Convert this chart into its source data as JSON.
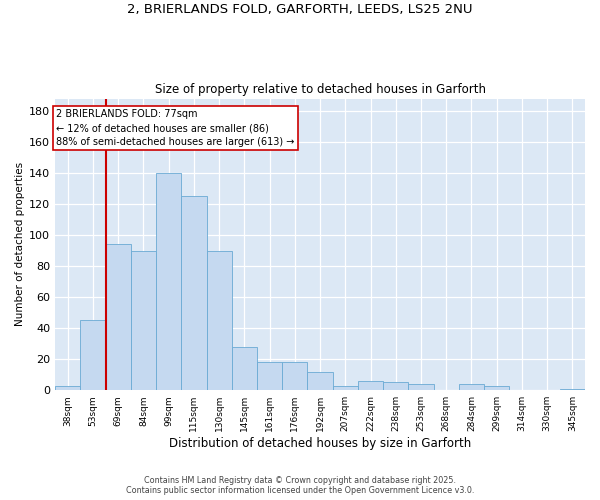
{
  "title1": "2, BRIERLANDS FOLD, GARFORTH, LEEDS, LS25 2NU",
  "title2": "Size of property relative to detached houses in Garforth",
  "xlabel": "Distribution of detached houses by size in Garforth",
  "ylabel": "Number of detached properties",
  "categories": [
    "38sqm",
    "53sqm",
    "69sqm",
    "84sqm",
    "99sqm",
    "115sqm",
    "130sqm",
    "145sqm",
    "161sqm",
    "176sqm",
    "192sqm",
    "207sqm",
    "222sqm",
    "238sqm",
    "253sqm",
    "268sqm",
    "284sqm",
    "299sqm",
    "314sqm",
    "330sqm",
    "345sqm"
  ],
  "values": [
    3,
    45,
    94,
    90,
    140,
    125,
    90,
    28,
    18,
    18,
    12,
    3,
    6,
    5,
    4,
    0,
    4,
    3,
    0,
    0,
    1
  ],
  "bar_color": "#c5d9f0",
  "bar_edge_color": "#6aaad4",
  "bg_color": "#dce8f5",
  "grid_color": "#ffffff",
  "vline_color": "#cc0000",
  "annotation_text": "2 BRIERLANDS FOLD: 77sqm\n← 12% of detached houses are smaller (86)\n88% of semi-detached houses are larger (613) →",
  "annotation_edge_color": "#cc0000",
  "footer_text": "Contains HM Land Registry data © Crown copyright and database right 2025.\nContains public sector information licensed under the Open Government Licence v3.0.",
  "ylim_max": 188,
  "yticks": [
    0,
    20,
    40,
    60,
    80,
    100,
    120,
    140,
    160,
    180
  ]
}
